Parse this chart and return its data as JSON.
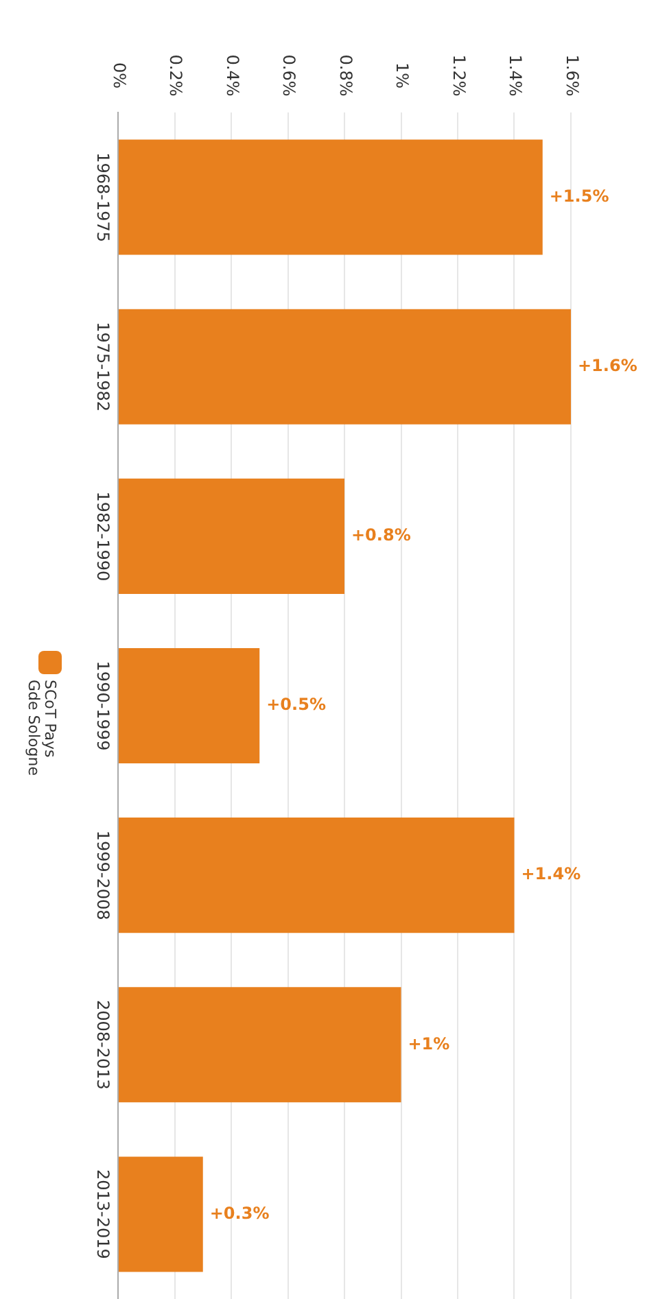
{
  "chart_data": {
    "type": "bar",
    "orientation": "horizontal",
    "categories": [
      "1968-1975",
      "1975-1982",
      "1982-1990",
      "1990-1999",
      "1999-2008",
      "2008-2013",
      "2013-2019"
    ],
    "series": [
      {
        "name": "SCoT Pays Gde Sologne",
        "color": "#e8801e",
        "values": [
          1.5,
          1.6,
          0.8,
          0.5,
          1.4,
          1,
          0.3
        ],
        "value_labels": [
          "+1.5%",
          "+1.6%",
          "+0.8%",
          "+0.5%",
          "+1.4%",
          "+1%",
          "+0.3%"
        ]
      }
    ],
    "xlim": [
      0,
      1.6
    ],
    "xticks": [
      {
        "value": 0,
        "label": "0%"
      },
      {
        "value": 0.2,
        "label": "0.2%"
      },
      {
        "value": 0.4,
        "label": "0.4%"
      },
      {
        "value": 0.6,
        "label": "0.6%"
      },
      {
        "value": 0.8,
        "label": "0.8%"
      },
      {
        "value": 1,
        "label": "1%"
      },
      {
        "value": 1.2,
        "label": "1.2%"
      },
      {
        "value": 1.4,
        "label": "1.4%"
      },
      {
        "value": 1.6,
        "label": "1.6%"
      }
    ],
    "grid": "x",
    "legend": "left"
  }
}
